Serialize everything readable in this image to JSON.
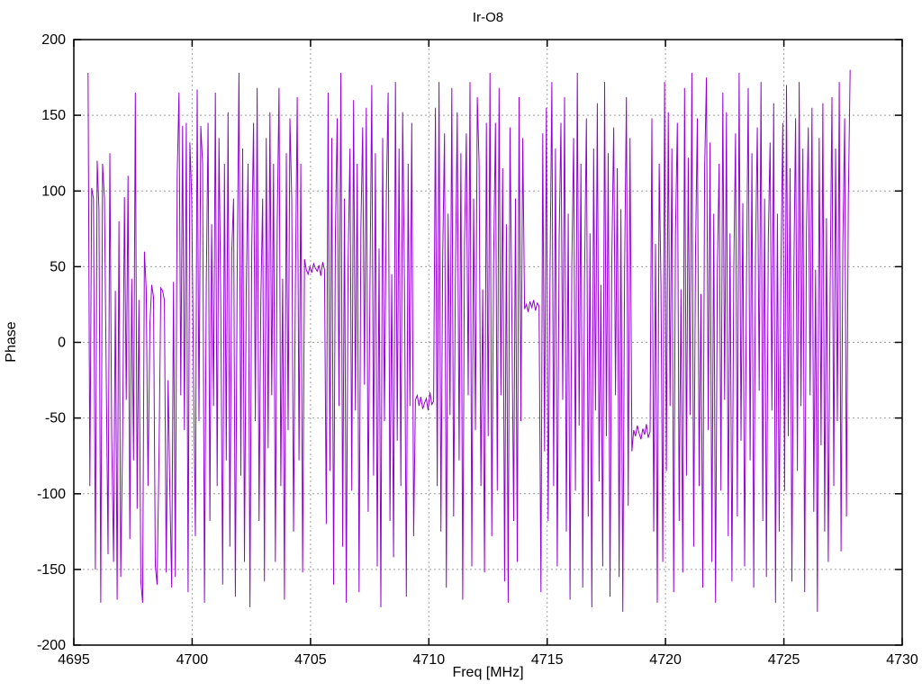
{
  "chart_data": {
    "type": "line",
    "title": "Ir-O8",
    "xlabel": "Freq [MHz]",
    "ylabel": "Phase",
    "xlim": [
      4695,
      4730
    ],
    "ylim": [
      -200,
      200
    ],
    "x_ticks": [
      4695,
      4700,
      4705,
      4710,
      4715,
      4720,
      4725,
      4730
    ],
    "y_ticks": [
      -200,
      -150,
      -100,
      -50,
      0,
      50,
      100,
      150,
      200
    ],
    "grid": true,
    "legend_position": "none",
    "line_color": "#9400d3",
    "grid_color": "#9e9e9e",
    "border_color": "#000000",
    "background_color": "#ffffff",
    "series": [
      {
        "name": "Phase",
        "x_start": 4695.6,
        "x_end": 4727.8,
        "values": [
          178,
          -95,
          102,
          95,
          -150,
          120,
          88,
          -172,
          118,
          95,
          -23,
          -140,
          125,
          -60,
          -145,
          34,
          -170,
          80,
          -155,
          -62,
          96,
          -38,
          110,
          -130,
          42,
          -78,
          165,
          -110,
          28,
          -158,
          -172,
          60,
          35,
          -95,
          12,
          38,
          30,
          -148,
          -160,
          -75,
          36,
          34,
          28,
          -152,
          -25,
          -100,
          -162,
          40,
          -155,
          110,
          165,
          -35,
          143,
          -58,
          145,
          -165,
          132,
          95,
          -18,
          -128,
          167,
          -52,
          143,
          118,
          -172,
          38,
          145,
          -118,
          78,
          -42,
          165,
          -95,
          135,
          25,
          -160,
          118,
          -78,
          152,
          -135,
          60,
          95,
          -168,
          42,
          178,
          -88,
          128,
          -145,
          35,
          118,
          -175,
          62,
          145,
          -52,
          168,
          -118,
          28,
          95,
          -158,
          135,
          -70,
          152,
          -35,
          118,
          -145,
          78,
          168,
          -95,
          42,
          -170,
          125,
          -58,
          148,
          95,
          -125,
          38,
          162,
          -78,
          118,
          -152,
          55,
          48,
          45,
          50,
          46,
          52,
          49,
          47,
          51,
          44,
          53,
          48,
          -120,
          165,
          -85,
          135,
          -160,
          72,
          148,
          -42,
          178,
          -135,
          95,
          -172,
          52,
          128,
          -98,
          160,
          -45,
          118,
          -165,
          75,
          142,
          -28,
          155,
          -112,
          38,
          170,
          -88,
          125,
          -148,
          62,
          -175,
          135,
          -52,
          98,
          165,
          -118,
          45,
          -142,
          172,
          -65,
          128,
          -95,
          152,
          35,
          -168,
          118,
          -42,
          145,
          -128,
          -38,
          -35,
          -42,
          -36,
          -44,
          -40,
          -37,
          -45,
          -33,
          -41,
          -39,
          155,
          -95,
          172,
          -125,
          58,
          138,
          -162,
          85,
          -48,
          168,
          -115,
          42,
          152,
          -78,
          125,
          -170,
          65,
          138,
          -35,
          172,
          -148,
          95,
          -58,
          162,
          118,
          -95,
          35,
          -152,
          145,
          -62,
          178,
          -128,
          52,
          145,
          -98,
          168,
          -35,
          115,
          -158,
          78,
          -172,
          142,
          25,
          -118,
          95,
          -145,
          162,
          -52,
          135,
          22,
          25,
          20,
          27,
          23,
          28,
          21,
          26,
          24,
          -165,
          138,
          -72,
          155,
          -118,
          48,
          172,
          -95,
          128,
          -148,
          68,
          145,
          -38,
          162,
          -125,
          85,
          -170,
          52,
          135,
          -98,
          178,
          -55,
          118,
          -162,
          42,
          148,
          -115,
          72,
          -175,
          128,
          -45,
          158,
          -92,
          38,
          -148,
          172,
          -62,
          125,
          -168,
          55,
          142,
          -35,
          115,
          -155,
          88,
          -178,
          48,
          162,
          -108,
          135,
          -72,
          -58,
          -62,
          -55,
          -60,
          -64,
          -57,
          -61,
          -54,
          -63,
          -59,
          148,
          -125,
          65,
          -172,
          118,
          38,
          -145,
          172,
          -85,
          152,
          -42,
          128,
          -165,
          72,
          145,
          -118,
          35,
          -152,
          168,
          -88,
          122,
          -48,
          178,
          -135,
          62,
          148,
          -95,
          32,
          -162,
          115,
          175,
          -58,
          132,
          -145,
          85,
          -172,
          48,
          118,
          -98,
          165,
          -38,
          152,
          -128,
          72,
          -158,
          45,
          138,
          -115,
          178,
          -65,
          92,
          -148,
          35,
          168,
          -78,
          125,
          -162,
          58,
          142,
          -32,
          172,
          -118,
          95,
          -155,
          68,
          132,
          -45,
          158,
          -172,
          85,
          -125,
          52,
          145,
          -98,
          170,
          -62,
          115,
          -158,
          38,
          148,
          -85,
          172,
          -42,
          128,
          -165,
          75,
          142,
          -35,
          155,
          -112,
          48,
          -178,
          135,
          -68,
          158,
          -125,
          82,
          -145,
          38,
          162,
          -95,
          128,
          -52,
          172,
          -138,
          65,
          148,
          -115,
          95,
          180
        ]
      }
    ]
  }
}
